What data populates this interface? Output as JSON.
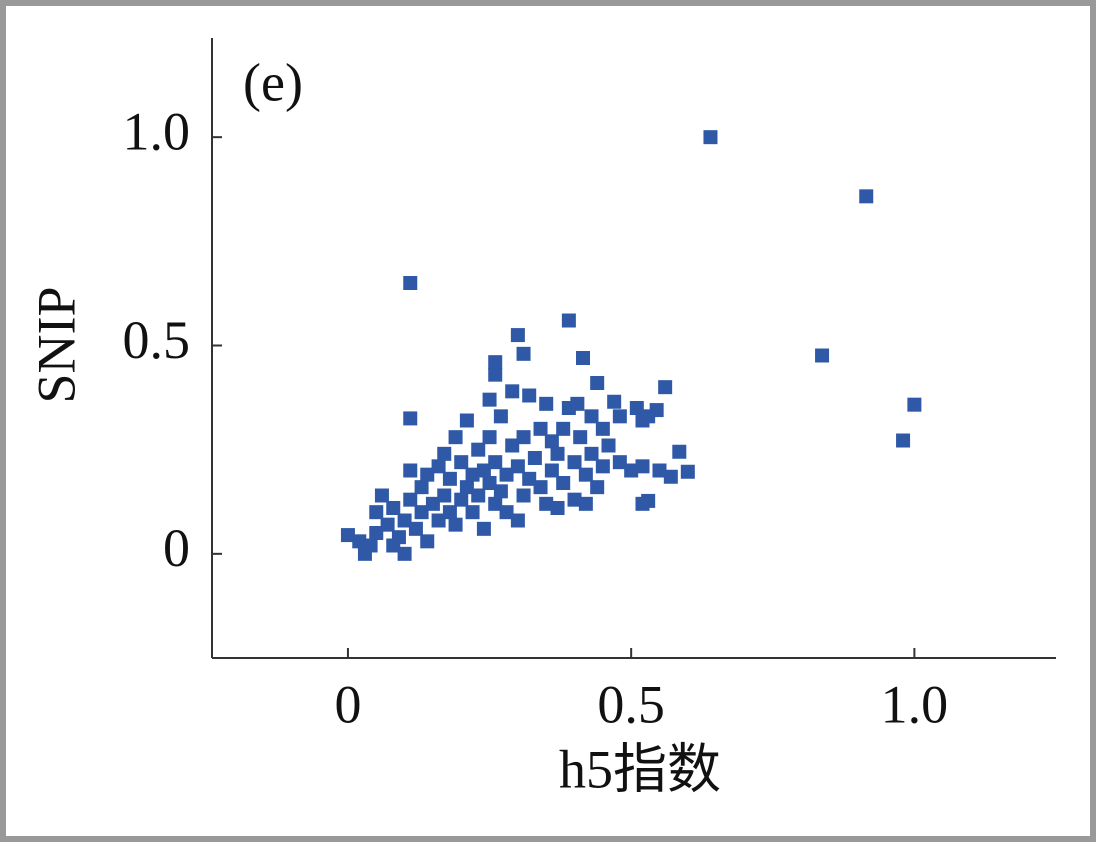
{
  "chart_data": {
    "type": "scatter",
    "annotation": "(e)",
    "x_label": "h5指数",
    "y_label": "SNIP",
    "color": "#2f58a6",
    "xlim": [
      -0.24,
      1.25
    ],
    "ylim": [
      -0.25,
      1.25
    ],
    "xticks": [
      0,
      0.5,
      {
        "value": 1,
        "label": "1.0"
      }
    ],
    "yticks": [
      0,
      0.5,
      {
        "value": 1,
        "label": "1.0"
      }
    ],
    "x": [
      0.64,
      0.915,
      0.11,
      0.837,
      1.0,
      0.98,
      0.11,
      0.39,
      0.3,
      0.415,
      0.56,
      0.44,
      0.26,
      0.31,
      0.405,
      0.47,
      0.51,
      0.545,
      0.52,
      0.585,
      0.6,
      0.57,
      0.53,
      0.52,
      0.0,
      0.02,
      0.03,
      0.04,
      0.05,
      0.05,
      0.06,
      0.07,
      0.08,
      0.08,
      0.09,
      0.1,
      0.1,
      0.11,
      0.11,
      0.12,
      0.13,
      0.13,
      0.14,
      0.14,
      0.15,
      0.16,
      0.16,
      0.17,
      0.17,
      0.18,
      0.18,
      0.19,
      0.19,
      0.2,
      0.2,
      0.21,
      0.21,
      0.22,
      0.22,
      0.23,
      0.23,
      0.24,
      0.24,
      0.25,
      0.25,
      0.25,
      0.26,
      0.26,
      0.26,
      0.27,
      0.27,
      0.28,
      0.28,
      0.29,
      0.29,
      0.3,
      0.3,
      0.31,
      0.31,
      0.32,
      0.32,
      0.33,
      0.34,
      0.34,
      0.35,
      0.35,
      0.36,
      0.36,
      0.37,
      0.37,
      0.38,
      0.38,
      0.39,
      0.4,
      0.4,
      0.41,
      0.42,
      0.42,
      0.43,
      0.43,
      0.44,
      0.45,
      0.45,
      0.46,
      0.48,
      0.5,
      0.52,
      0.55,
      0.48,
      0.53
    ],
    "values": [
      1.0,
      0.858,
      0.65,
      0.476,
      0.358,
      0.272,
      0.325,
      0.56,
      0.525,
      0.47,
      0.4,
      0.41,
      0.46,
      0.48,
      0.36,
      0.365,
      0.35,
      0.345,
      0.32,
      0.245,
      0.197,
      0.185,
      0.127,
      0.12,
      0.045,
      0.03,
      0.0,
      0.02,
      0.05,
      0.1,
      0.14,
      0.07,
      0.02,
      0.11,
      0.04,
      0.0,
      0.08,
      0.13,
      0.2,
      0.06,
      0.1,
      0.16,
      0.03,
      0.19,
      0.12,
      0.08,
      0.21,
      0.14,
      0.24,
      0.1,
      0.18,
      0.07,
      0.28,
      0.13,
      0.22,
      0.16,
      0.32,
      0.1,
      0.19,
      0.25,
      0.14,
      0.06,
      0.2,
      0.17,
      0.28,
      0.37,
      0.12,
      0.22,
      0.43,
      0.15,
      0.33,
      0.19,
      0.1,
      0.26,
      0.39,
      0.08,
      0.21,
      0.14,
      0.28,
      0.18,
      0.38,
      0.23,
      0.16,
      0.3,
      0.12,
      0.36,
      0.2,
      0.27,
      0.11,
      0.24,
      0.3,
      0.17,
      0.35,
      0.13,
      0.22,
      0.28,
      0.19,
      0.12,
      0.33,
      0.24,
      0.16,
      0.3,
      0.21,
      0.26,
      0.22,
      0.2,
      0.21,
      0.2,
      0.33,
      0.33
    ]
  }
}
